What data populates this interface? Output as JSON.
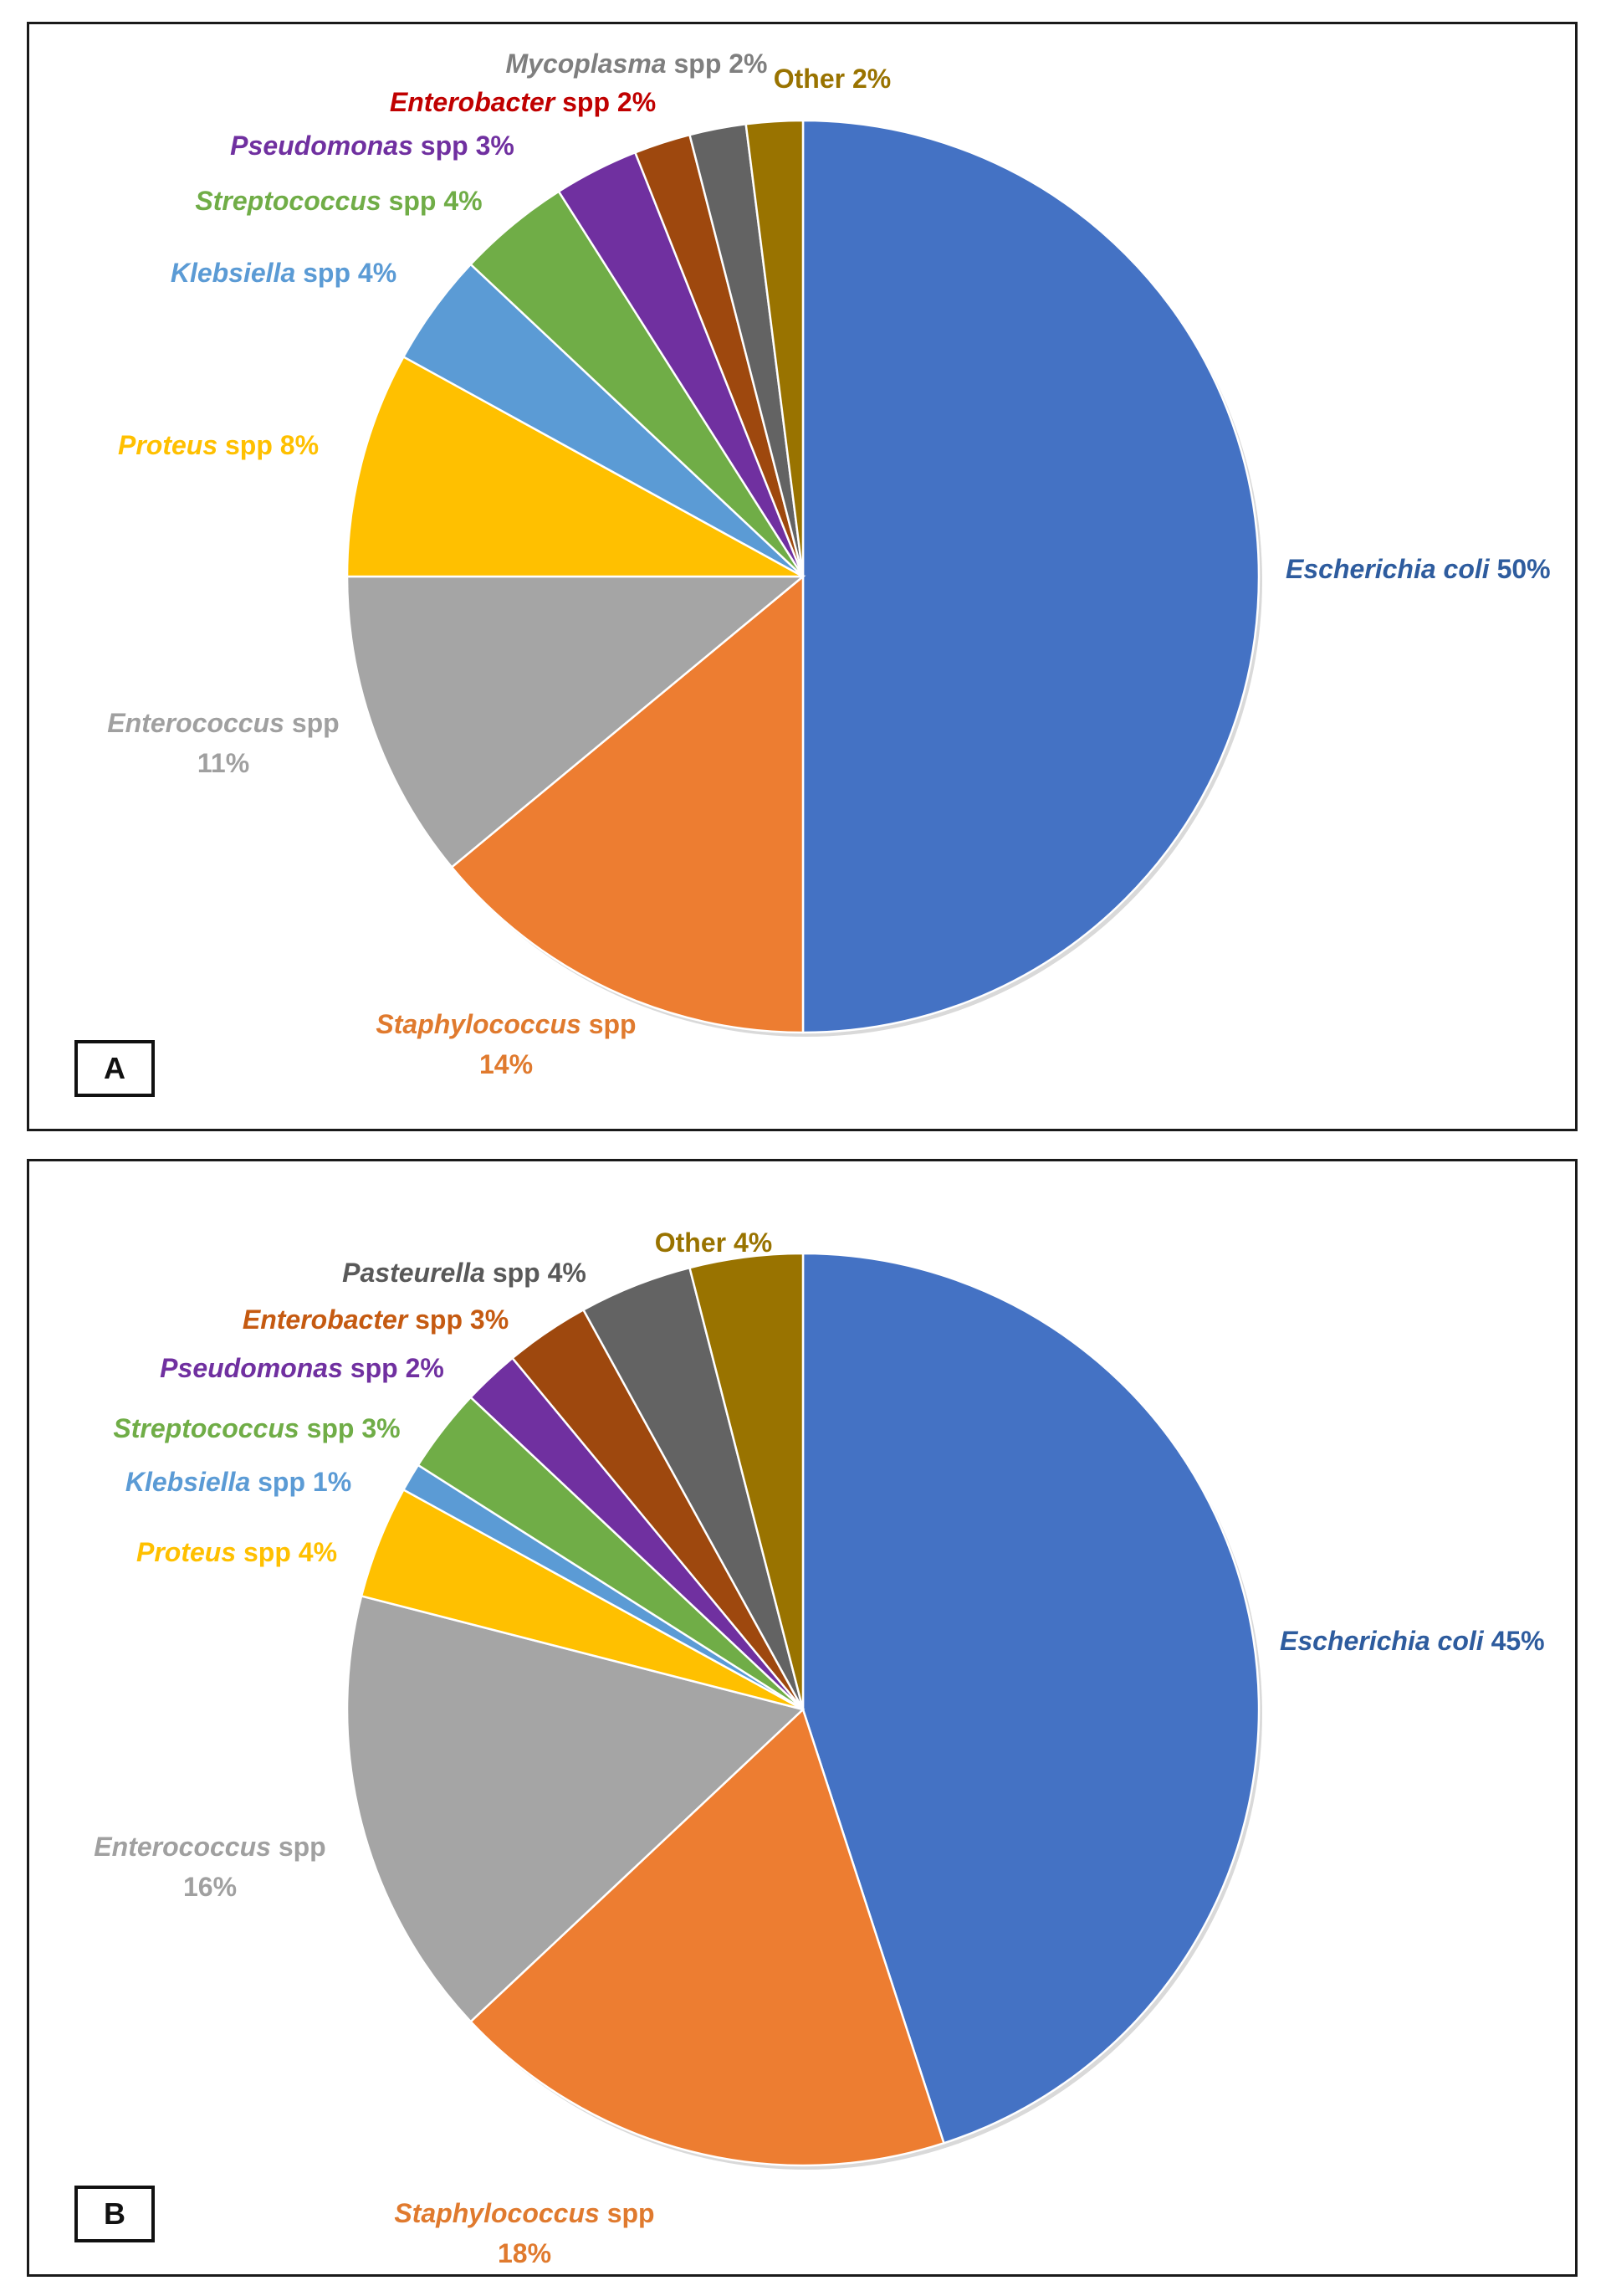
{
  "chart_data": [
    {
      "type": "pie",
      "panel": "A",
      "start_angle_deg": 0,
      "direction": "clockwise",
      "slices": [
        {
          "genus": "Escherichia coli",
          "suffix": "",
          "value": 50,
          "label_value": "50%",
          "color": "#4472C4",
          "label_color": "#2E5C9E",
          "label_lines": 1
        },
        {
          "genus": "Staphylococcus",
          "suffix": "spp",
          "value": 14,
          "label_value": "14%",
          "color": "#ED7D31",
          "label_color": "#E07A2E",
          "label_lines": 2
        },
        {
          "genus": "Enterococcus",
          "suffix": "spp",
          "value": 11,
          "label_value": "11%",
          "color": "#A5A5A5",
          "label_color": "#A0A0A0",
          "label_lines": 2
        },
        {
          "genus": "Proteus",
          "suffix": "spp",
          "value": 8,
          "label_value": "8%",
          "color": "#FFC000",
          "label_color": "#FFC000",
          "label_lines": 1
        },
        {
          "genus": "Klebsiella",
          "suffix": "spp",
          "value": 4,
          "label_value": "4%",
          "color": "#5B9BD5",
          "label_color": "#5B9BD5",
          "label_lines": 1
        },
        {
          "genus": "Streptococcus",
          "suffix": "spp",
          "value": 4,
          "label_value": "4%",
          "color": "#70AD47",
          "label_color": "#70AD47",
          "label_lines": 1
        },
        {
          "genus": "Pseudomonas",
          "suffix": "spp",
          "value": 3,
          "label_value": "3%",
          "color": "#7030A0",
          "label_color": "#7030A0",
          "label_lines": 1
        },
        {
          "genus": "Enterobacter",
          "suffix": "spp",
          "value": 2,
          "label_value": "2%",
          "color": "#9E480E",
          "label_color": "#C00000",
          "label_lines": 1
        },
        {
          "genus": "Mycoplasma",
          "suffix": "spp",
          "value": 2,
          "label_value": "2%",
          "color": "#636363",
          "label_color": "#7F7F7F",
          "label_lines": 1
        },
        {
          "genus": "Other",
          "suffix": "",
          "value": 2,
          "label_value": "2%",
          "color": "#997300",
          "label_color": "#997300",
          "label_lines": 1,
          "italic": false
        }
      ]
    },
    {
      "type": "pie",
      "panel": "B",
      "start_angle_deg": 0,
      "direction": "clockwise",
      "slices": [
        {
          "genus": "Escherichia coli",
          "suffix": "",
          "value": 45,
          "label_value": "45%",
          "color": "#4472C4",
          "label_color": "#2E5C9E",
          "label_lines": 1
        },
        {
          "genus": "Staphylococcus",
          "suffix": "spp",
          "value": 18,
          "label_value": "18%",
          "color": "#ED7D31",
          "label_color": "#E07A2E",
          "label_lines": 2
        },
        {
          "genus": "Enterococcus",
          "suffix": "spp",
          "value": 16,
          "label_value": "16%",
          "color": "#A5A5A5",
          "label_color": "#A0A0A0",
          "label_lines": 2
        },
        {
          "genus": "Proteus",
          "suffix": "spp",
          "value": 4,
          "label_value": "4%",
          "color": "#FFC000",
          "label_color": "#FFC000",
          "label_lines": 1
        },
        {
          "genus": "Klebsiella",
          "suffix": "spp",
          "value": 1,
          "label_value": "1%",
          "color": "#5B9BD5",
          "label_color": "#5B9BD5",
          "label_lines": 1
        },
        {
          "genus": "Streptococcus",
          "suffix": "spp",
          "value": 3,
          "label_value": "3%",
          "color": "#70AD47",
          "label_color": "#70AD47",
          "label_lines": 1
        },
        {
          "genus": "Pseudomonas",
          "suffix": "spp",
          "value": 2,
          "label_value": "2%",
          "color": "#7030A0",
          "label_color": "#7030A0",
          "label_lines": 1
        },
        {
          "genus": "Enterobacter",
          "suffix": "spp",
          "value": 3,
          "label_value": "3%",
          "color": "#9E480E",
          "label_color": "#C55A11",
          "label_lines": 1
        },
        {
          "genus": "Pasteurella",
          "suffix": "spp",
          "value": 4,
          "label_value": "4%",
          "color": "#636363",
          "label_color": "#595959",
          "label_lines": 1
        },
        {
          "genus": "Other",
          "suffix": "",
          "value": 4,
          "label_value": "4%",
          "color": "#997300",
          "label_color": "#997300",
          "label_lines": 1,
          "italic": false
        }
      ]
    }
  ]
}
